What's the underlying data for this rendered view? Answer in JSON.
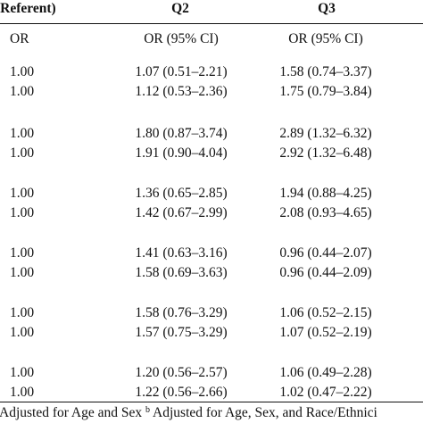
{
  "header": {
    "col0": "(Referent)",
    "col1": "Q2",
    "col2": "Q3"
  },
  "subheader": {
    "col0": "OR",
    "col1": "OR (95% CI)",
    "col2": "OR (95% CI)"
  },
  "rows": [
    {
      "ref": "1.00",
      "q2": "1.07 (0.51–2.21)",
      "q3": "1.58 (0.74–3.37)"
    },
    {
      "ref": "1.00",
      "q2": "1.12 (0.53–2.36)",
      "q3": "1.75 (0.79–3.84)"
    },
    {
      "ref": "1.00",
      "q2": "1.80 (0.87–3.74)",
      "q3": "2.89 (1.32–6.32)"
    },
    {
      "ref": "1.00",
      "q2": "1.91 (0.90–4.04)",
      "q3": "2.92 (1.32–6.48)"
    },
    {
      "ref": "1.00",
      "q2": "1.36 (0.65–2.85)",
      "q3": "1.94 (0.88–4.25)"
    },
    {
      "ref": "1.00",
      "q2": "1.42 (0.67–2.99)",
      "q3": "2.08 (0.93–4.65)"
    },
    {
      "ref": "1.00",
      "q2": "1.41 (0.63–3.16)",
      "q3": "0.96 (0.44–2.07)"
    },
    {
      "ref": "1.00",
      "q2": "1.58 (0.69–3.63)",
      "q3": "0.96 (0.44–2.09)"
    },
    {
      "ref": "1.00",
      "q2": "1.58 (0.76–3.29)",
      "q3": "1.06 (0.52–2.15)"
    },
    {
      "ref": "1.00",
      "q2": "1.57 (0.75–3.29)",
      "q3": "1.07 (0.52–2.19)"
    },
    {
      "ref": "1.00",
      "q2": "1.20 (0.56–2.57)",
      "q3": "1.06 (0.49–2.28)"
    },
    {
      "ref": "1.00",
      "q2": "1.22 (0.56–2.66)",
      "q3": "1.02 (0.47–2.22)"
    }
  ],
  "footnote": {
    "part1": "Adjusted for Age and Sex",
    "marker": "b",
    "part2": "Adjusted for Age, Sex, and Race/Ethnici"
  }
}
